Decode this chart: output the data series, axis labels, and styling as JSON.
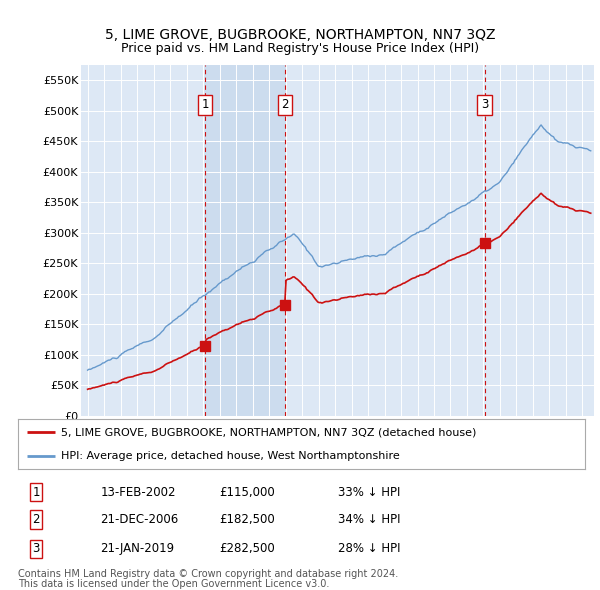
{
  "title": "5, LIME GROVE, BUGBROOKE, NORTHAMPTON, NN7 3QZ",
  "subtitle": "Price paid vs. HM Land Registry's House Price Index (HPI)",
  "ylim": [
    0,
    575000
  ],
  "yticks": [
    0,
    50000,
    100000,
    150000,
    200000,
    250000,
    300000,
    350000,
    400000,
    450000,
    500000,
    550000
  ],
  "ytick_labels": [
    "£0",
    "£50K",
    "£100K",
    "£150K",
    "£200K",
    "£250K",
    "£300K",
    "£350K",
    "£400K",
    "£450K",
    "£500K",
    "£550K"
  ],
  "hpi_color": "#6699cc",
  "price_color": "#cc1111",
  "background_color": "#ffffff",
  "plot_bg_color": "#dde8f5",
  "grid_color": "#ffffff",
  "shade_color": "#ccdcee",
  "sale_dates": [
    2002.12,
    2006.97,
    2019.07
  ],
  "sale_prices": [
    115000,
    182500,
    282500
  ],
  "sale_labels": [
    "1",
    "2",
    "3"
  ],
  "legend_label_red": "5, LIME GROVE, BUGBROOKE, NORTHAMPTON, NN7 3QZ (detached house)",
  "legend_label_blue": "HPI: Average price, detached house, West Northamptonshire",
  "table_data": [
    [
      "1",
      "13-FEB-2002",
      "£115,000",
      "33% ↓ HPI"
    ],
    [
      "2",
      "21-DEC-2006",
      "£182,500",
      "34% ↓ HPI"
    ],
    [
      "3",
      "21-JAN-2019",
      "£282,500",
      "28% ↓ HPI"
    ]
  ],
  "footer": "Contains HM Land Registry data © Crown copyright and database right 2024.\nThis data is licensed under the Open Government Licence v3.0.",
  "title_fontsize": 10,
  "subtitle_fontsize": 9,
  "tick_fontsize": 8,
  "legend_fontsize": 8,
  "table_fontsize": 8.5,
  "footer_fontsize": 7
}
